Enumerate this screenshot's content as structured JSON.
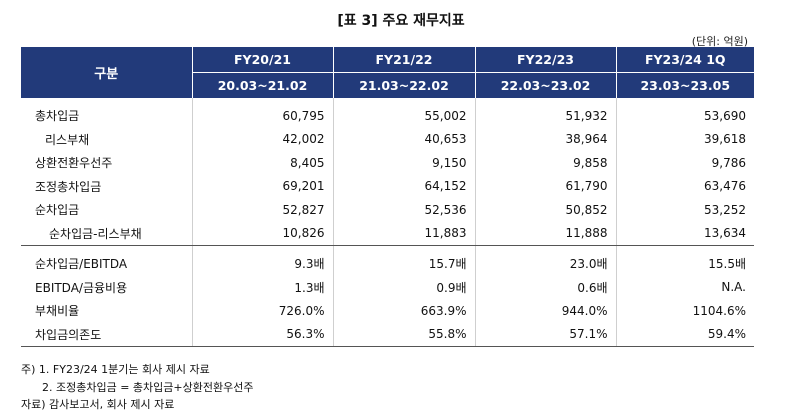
{
  "title": "[표 3] 주요 재무지표",
  "unit": "(단위: 억원)",
  "header": {
    "category": "구분",
    "columns": [
      {
        "fy": "FY20/21",
        "period": "20.03~21.02"
      },
      {
        "fy": "FY21/22",
        "period": "21.03~22.02"
      },
      {
        "fy": "FY22/23",
        "period": "22.03~23.02"
      },
      {
        "fy": "FY23/24 1Q",
        "period": "23.03~23.05"
      }
    ]
  },
  "rows": [
    {
      "label": "총차입금",
      "values": [
        "60,795",
        "55,002",
        "51,932",
        "53,690"
      ]
    },
    {
      "label": "리스부채",
      "values": [
        "42,002",
        "40,653",
        "38,964",
        "39,618"
      ]
    },
    {
      "label": "상환전환우선주",
      "values": [
        "8,405",
        "9,150",
        "9,858",
        "9,786"
      ]
    },
    {
      "label": "조정총차입금",
      "values": [
        "69,201",
        "64,152",
        "61,790",
        "63,476"
      ]
    },
    {
      "label": "순차입금",
      "values": [
        "52,827",
        "52,536",
        "50,852",
        "53,252"
      ]
    },
    {
      "label": "순차입금-리스부채",
      "values": [
        "10,826",
        "11,883",
        "11,888",
        "13,634"
      ]
    },
    {
      "label": "순차입금/EBITDA",
      "values": [
        "9.3배",
        "15.7배",
        "23.0배",
        "15.5배"
      ]
    },
    {
      "label": "EBITDA/금융비용",
      "values": [
        "1.3배",
        "0.9배",
        "0.6배",
        "N.A."
      ]
    },
    {
      "label": "부채비율",
      "values": [
        "726.0%",
        "663.9%",
        "944.0%",
        "1104.6%"
      ]
    },
    {
      "label": "차입금의존도",
      "values": [
        "56.3%",
        "55.8%",
        "57.1%",
        "59.4%"
      ]
    }
  ],
  "notes": [
    "주) 1. FY23/24 1분기는 회사 제시 자료",
    "2. 조정총차입금 = 총차입금+상환전환우선주",
    "자료) 감사보고서, 회사 제시 자료"
  ]
}
